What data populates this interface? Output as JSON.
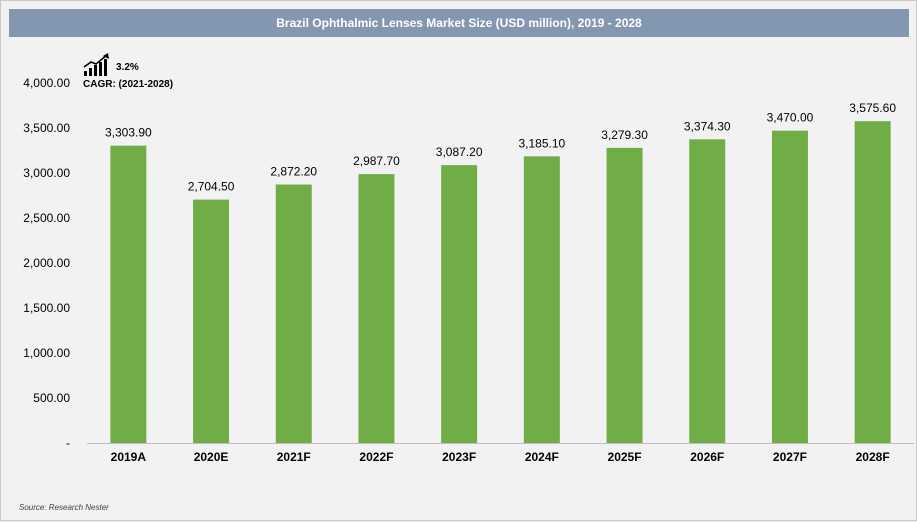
{
  "chart_data": {
    "type": "bar",
    "title": "Brazil Ophthalmic Lenses Market Size (USD million), 2019 - 2028",
    "categories": [
      "2019A",
      "2020E",
      "2021F",
      "2022F",
      "2023F",
      "2024F",
      "2025F",
      "2026F",
      "2027F",
      "2028F"
    ],
    "values": [
      3303.9,
      2704.5,
      2872.2,
      2987.7,
      3087.2,
      3185.1,
      3279.3,
      3374.3,
      3470.0,
      3575.6
    ],
    "value_labels": [
      "3,303.90",
      "2,704.50",
      "2,872.20",
      "2,987.70",
      "3,087.20",
      "3,185.10",
      "3,279.30",
      "3,374.30",
      "3,470.00",
      "3,575.60"
    ],
    "y_ticks": [
      0,
      500,
      1000,
      1500,
      2000,
      2500,
      3000,
      3500,
      4000
    ],
    "y_tick_labels": [
      "-",
      "500.00",
      "1,000.00",
      "1,500.00",
      "2,000.00",
      "2,500.00",
      "3,000.00",
      "3,500.00",
      "4,000.00"
    ],
    "ylim": [
      0,
      4000
    ],
    "xlabel": "",
    "ylabel": "",
    "grid": false,
    "bar_color": "#70ad47"
  },
  "cagr": {
    "value": "3.2%",
    "label": "CAGR: (2021-2028)",
    "icon": "trend-up-icon"
  },
  "source": "Source: Research Nester",
  "colors": {
    "title_bar": "#8497b0",
    "background": "#f2f2f2",
    "bar": "#70ad47"
  }
}
